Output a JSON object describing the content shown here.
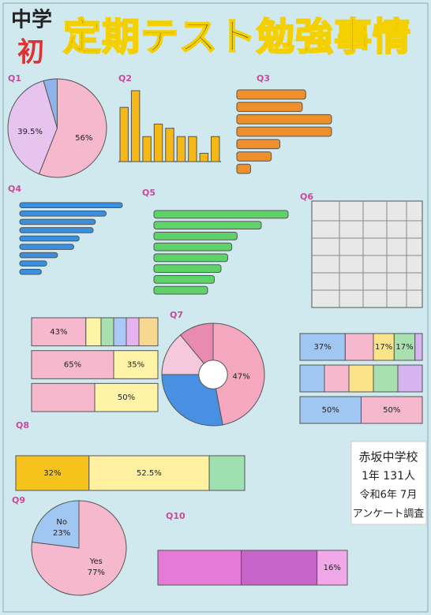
{
  "poster": {
    "title_small": "中学",
    "title_first": "初",
    "title_main": "定期テスト勉強事情"
  },
  "info": {
    "school": "赤坂中学校",
    "grade": "1年 131人",
    "date": "令和6年 7月",
    "survey": "アンケート調査"
  },
  "chart_data": [
    {
      "type": "pie",
      "title": "Q1",
      "values": [
        56,
        39.5,
        4.5
      ],
      "value_labels": [
        "56%",
        "39.5%",
        null
      ],
      "colors": [
        "#f5b8cc",
        "#e7c4ee",
        "#8fb3e8"
      ]
    },
    {
      "type": "bar",
      "title": "Q2",
      "values": [
        13,
        17,
        6,
        9,
        8,
        6,
        6,
        2,
        6
      ],
      "color": "#f6b816"
    },
    {
      "type": "barh",
      "title": "Q3",
      "values": [
        40,
        38,
        55,
        55,
        25,
        20,
        8
      ],
      "color": "#f0902c"
    },
    {
      "type": "barh",
      "title": "Q4",
      "values": [
        95,
        80,
        70,
        68,
        55,
        50,
        35,
        25,
        20
      ],
      "color": "#3a8fe0"
    },
    {
      "type": "barh",
      "title": "Q5",
      "values": [
        100,
        80,
        62,
        58,
        55,
        50,
        45,
        40
      ],
      "color": "#5fd36a"
    },
    {
      "type": "stacked",
      "rows": [
        {
          "values": [
            43,
            12,
            10,
            10,
            10,
            15
          ],
          "value_labels": [
            "43%",
            null,
            null,
            null,
            null,
            null
          ]
        },
        {
          "values": [
            65,
            35
          ],
          "value_labels": [
            "65%",
            "35%"
          ]
        },
        {
          "values": [
            50,
            50
          ],
          "value_labels": [
            null,
            "50%"
          ]
        }
      ],
      "colors": [
        "#f5b8cc",
        "#fff3a8",
        "#a8e0b0",
        "#a9c8f5",
        "#e5b3f0",
        "#f7d890"
      ]
    },
    {
      "type": "donut",
      "title": "Q7",
      "values": [
        47,
        28,
        14,
        11
      ],
      "value_labels": [
        "47%",
        null,
        null,
        null
      ],
      "colors": [
        "#f5a8c0",
        "#4a90e2",
        "#f5c8dc",
        "#e98bb0"
      ]
    },
    {
      "type": "stacked",
      "rows": [
        {
          "values": [
            37,
            23,
            17,
            17,
            6
          ],
          "value_labels": [
            "37%",
            null,
            "17%",
            "17%",
            null
          ]
        },
        {
          "values": [
            20,
            20,
            20,
            20,
            20
          ],
          "value_labels": [
            null,
            null,
            null,
            null,
            null
          ]
        },
        {
          "values": [
            50,
            50
          ],
          "value_labels": [
            "50%",
            "50%"
          ]
        }
      ],
      "colors": [
        "#9fc7f2",
        "#f5b8cc",
        "#fbe38a",
        "#a8e0b0",
        "#d7b3f0"
      ]
    },
    {
      "type": "stacked",
      "title": "Q8",
      "rows": [
        {
          "values": [
            32,
            52.5,
            15.5
          ],
          "value_labels": [
            "32%",
            "52.5%",
            null
          ]
        }
      ],
      "colors": [
        "#f6c21c",
        "#fff1a0",
        "#9fe0b0"
      ]
    },
    {
      "type": "pie",
      "title": "Q9",
      "categories": [
        "Yes",
        "No"
      ],
      "values": [
        77,
        23
      ],
      "value_labels": [
        "77%",
        "23%"
      ],
      "colors": [
        "#f5b8cc",
        "#9fc7f2"
      ]
    },
    {
      "type": "stacked",
      "title": "Q10",
      "rows": [
        {
          "values": [
            44,
            40,
            16
          ],
          "value_labels": [
            null,
            null,
            "16%"
          ]
        }
      ],
      "colors": [
        "#e57ad8",
        "#c664c9",
        "#f0a8e8"
      ]
    }
  ]
}
